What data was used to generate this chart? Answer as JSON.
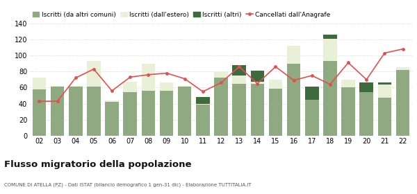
{
  "years": [
    "02",
    "03",
    "04",
    "05",
    "06",
    "07",
    "08",
    "09",
    "10",
    "11",
    "12",
    "13",
    "14",
    "15",
    "16",
    "17",
    "18",
    "19",
    "20",
    "21",
    "22"
  ],
  "iscritti_altri_comuni": [
    58,
    61,
    61,
    61,
    42,
    54,
    56,
    56,
    61,
    39,
    72,
    65,
    65,
    59,
    90,
    45,
    93,
    60,
    54,
    47,
    82
  ],
  "iscritti_estero": [
    14,
    1,
    1,
    32,
    2,
    13,
    34,
    10,
    1,
    1,
    8,
    10,
    2,
    11,
    22,
    0,
    28,
    10,
    0,
    17,
    3
  ],
  "iscritti_altri": [
    0,
    0,
    0,
    0,
    0,
    0,
    0,
    0,
    0,
    8,
    0,
    13,
    14,
    0,
    0,
    16,
    5,
    0,
    12,
    2,
    0
  ],
  "cancellati": [
    43,
    43,
    72,
    83,
    56,
    73,
    76,
    78,
    71,
    55,
    66,
    86,
    65,
    86,
    69,
    75,
    64,
    91,
    70,
    103,
    108
  ],
  "color_iscritti_comuni": "#8faa80",
  "color_iscritti_estero": "#e8f0d8",
  "color_iscritti_altri": "#3d6b3d",
  "color_cancellati": "#e05050",
  "title": "Flusso migratorio della popolazione",
  "subtitle": "COMUNE DI ATELLA (PZ) - Dati ISTAT (bilancio demografico 1 gen-31 dic) - Elaborazione TUTTITALIA.IT",
  "legend_labels": [
    "Iscritti (da altri comuni)",
    "Iscritti (dall'estero)",
    "Iscritti (altri)",
    "Cancellati dall'Anagrafe"
  ],
  "ylim": [
    0,
    140
  ],
  "yticks": [
    0,
    20,
    40,
    60,
    80,
    100,
    120,
    140
  ],
  "bg_color": "#ffffff",
  "grid_color": "#cccccc"
}
